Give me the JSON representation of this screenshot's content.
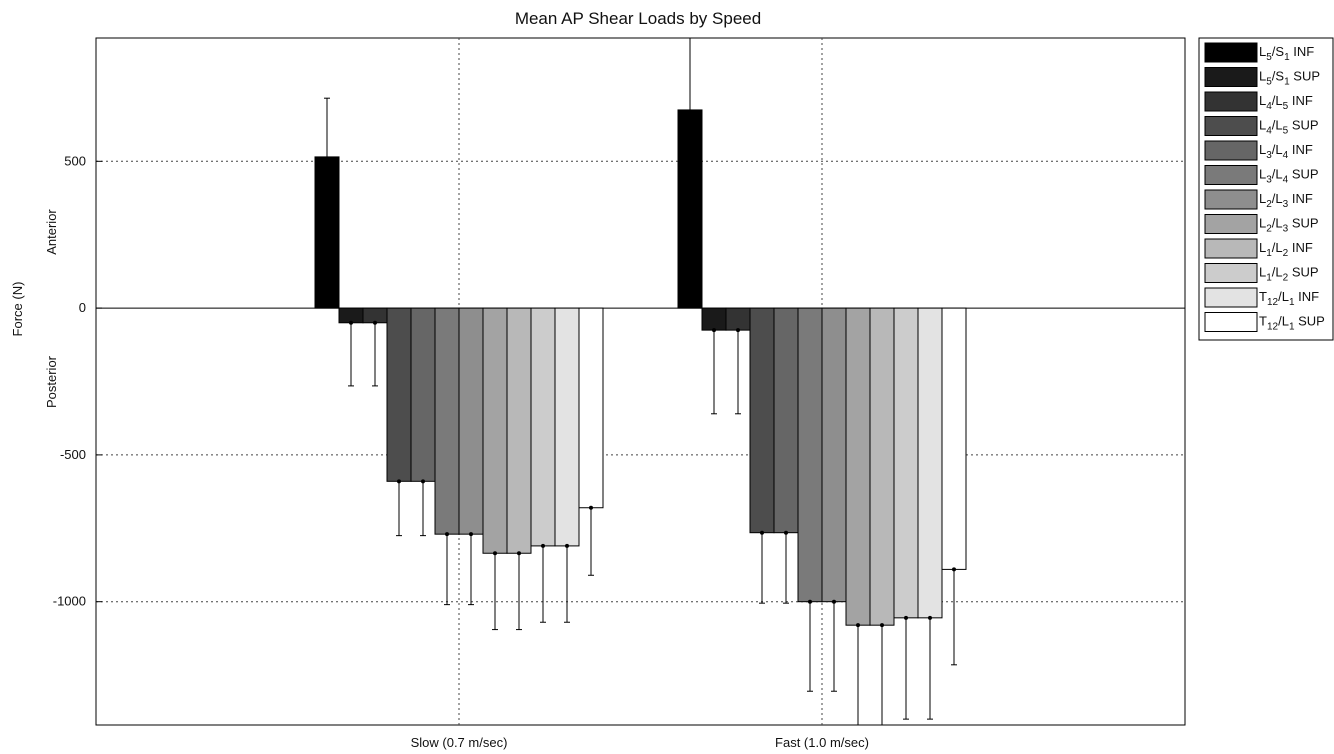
{
  "chart_data": {
    "type": "bar",
    "title": "Mean AP Shear Loads by Speed",
    "ylabel": "Force (N)",
    "direction_labels": {
      "positive": "Anterior",
      "negative": "Posterior"
    },
    "categories": [
      "Slow (0.7 m/sec)",
      "Fast (1.0 m/sec)"
    ],
    "ylim": [
      -1420,
      920
    ],
    "yticks": [
      500,
      0,
      -500,
      -1000
    ],
    "ytick_labels": [
      "500",
      "0",
      "-500",
      "-1000"
    ],
    "grid": true,
    "legend_position": "right-outside",
    "series": [
      {
        "name": "L5/S1 INF",
        "label": [
          [
            "L",
            "5",
            "/"
          ],
          [
            "S",
            "1",
            " INF"
          ]
        ],
        "color": "#000000",
        "values": [
          515,
          675
        ],
        "errors": [
          200,
          265
        ]
      },
      {
        "name": "L5/S1 SUP",
        "label": [
          [
            "L",
            "5",
            "/"
          ],
          [
            "S",
            "1",
            " SUP"
          ]
        ],
        "color": "#1a1a1a",
        "values": [
          -50,
          -75
        ],
        "errors": [
          215,
          285
        ]
      },
      {
        "name": "L4/L5 INF",
        "label": [
          [
            "L",
            "4",
            "/"
          ],
          [
            "L",
            "5",
            " INF"
          ]
        ],
        "color": "#333333",
        "values": [
          -50,
          -75
        ],
        "errors": [
          215,
          285
        ]
      },
      {
        "name": "L4/L5 SUP",
        "label": [
          [
            "L",
            "4",
            "/"
          ],
          [
            "L",
            "5",
            " SUP"
          ]
        ],
        "color": "#4d4d4d",
        "values": [
          -590,
          -765
        ],
        "errors": [
          185,
          240
        ]
      },
      {
        "name": "L3/L4 INF",
        "label": [
          [
            "L",
            "3",
            "/"
          ],
          [
            "L",
            "4",
            " INF"
          ]
        ],
        "color": "#666666",
        "values": [
          -590,
          -765
        ],
        "errors": [
          185,
          240
        ]
      },
      {
        "name": "L3/L4 SUP",
        "label": [
          [
            "L",
            "3",
            "/"
          ],
          [
            "L",
            "4",
            " SUP"
          ]
        ],
        "color": "#7a7a7a",
        "values": [
          -770,
          -1000
        ],
        "errors": [
          240,
          305
        ]
      },
      {
        "name": "L2/L3 INF",
        "label": [
          [
            "L",
            "2",
            "/"
          ],
          [
            "L",
            "3",
            " INF"
          ]
        ],
        "color": "#8e8e8e",
        "values": [
          -770,
          -1000
        ],
        "errors": [
          240,
          305
        ]
      },
      {
        "name": "L2/L3 SUP",
        "label": [
          [
            "L",
            "2",
            "/"
          ],
          [
            "L",
            "3",
            " SUP"
          ]
        ],
        "color": "#a3a3a3",
        "values": [
          -835,
          -1080
        ],
        "errors": [
          260,
          340
        ]
      },
      {
        "name": "L1/L2 INF",
        "label": [
          [
            "L",
            "1",
            "/"
          ],
          [
            "L",
            "2",
            " INF"
          ]
        ],
        "color": "#b8b8b8",
        "values": [
          -835,
          -1080
        ],
        "errors": [
          260,
          340
        ]
      },
      {
        "name": "L1/L2 SUP",
        "label": [
          [
            "L",
            "1",
            "/"
          ],
          [
            "L",
            "2",
            " SUP"
          ]
        ],
        "color": "#cccccc",
        "values": [
          -810,
          -1055
        ],
        "errors": [
          260,
          345
        ]
      },
      {
        "name": "T12/L1 INF",
        "label": [
          [
            "T",
            "12",
            "/"
          ],
          [
            "L",
            "1",
            " INF"
          ]
        ],
        "color": "#e3e3e3",
        "values": [
          -810,
          -1055
        ],
        "errors": [
          260,
          345
        ]
      },
      {
        "name": "T12/L1 SUP",
        "label": [
          [
            "T",
            "12",
            "/"
          ],
          [
            "L",
            "1",
            " SUP"
          ]
        ],
        "color": "#ffffff",
        "values": [
          -680,
          -890
        ],
        "errors": [
          230,
          325
        ]
      }
    ]
  }
}
